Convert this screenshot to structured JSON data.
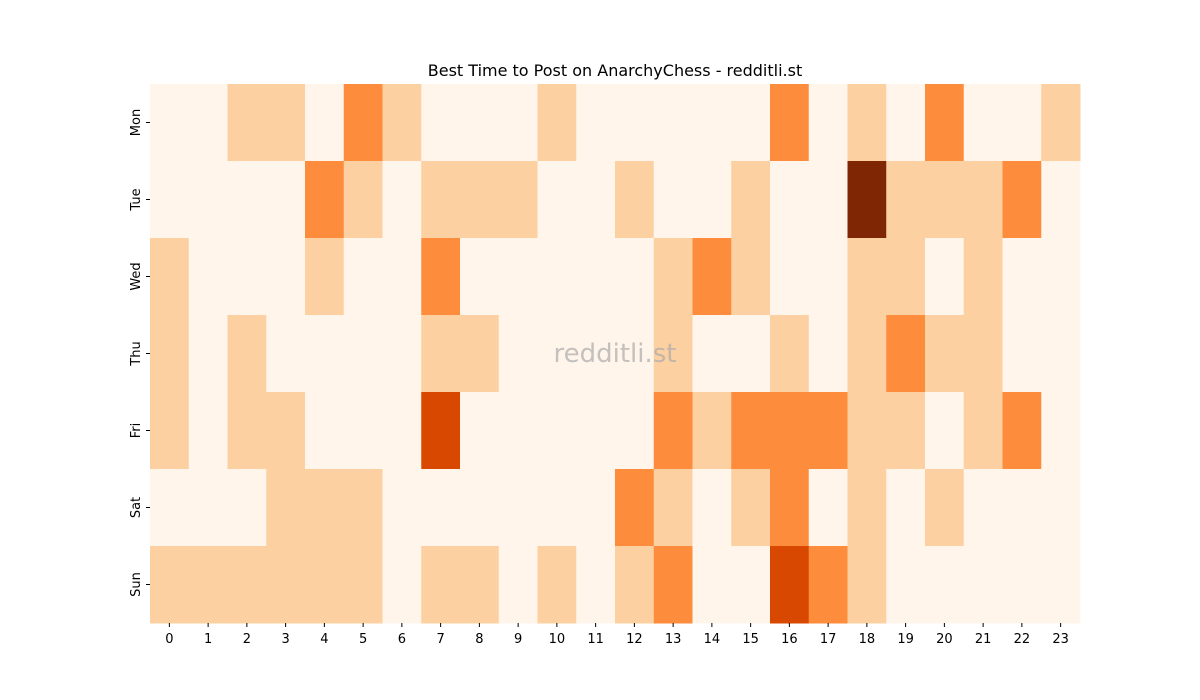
{
  "chart_data": {
    "type": "heatmap",
    "title": "Best Time to Post on AnarchyChess - redditli.st",
    "watermark": "redditli.st",
    "xlabel": "",
    "ylabel": "",
    "x_categories": [
      "0",
      "1",
      "2",
      "3",
      "4",
      "5",
      "6",
      "7",
      "8",
      "9",
      "10",
      "11",
      "12",
      "13",
      "14",
      "15",
      "16",
      "17",
      "18",
      "19",
      "20",
      "21",
      "22",
      "23"
    ],
    "y_categories": [
      "Mon",
      "Tue",
      "Wed",
      "Thu",
      "Fri",
      "Sat",
      "Sun"
    ],
    "colormap": "Oranges",
    "colorbar": false,
    "level_colors": [
      "#fff5eb",
      "#fdd0a2",
      "#fd8d3c",
      "#d94801",
      "#7f2704"
    ],
    "values": [
      [
        0,
        0,
        1,
        1,
        0,
        2,
        1,
        0,
        0,
        0,
        1,
        0,
        0,
        0,
        0,
        0,
        2,
        0,
        1,
        0,
        2,
        0,
        0,
        1
      ],
      [
        0,
        0,
        0,
        0,
        2,
        1,
        0,
        1,
        1,
        1,
        0,
        0,
        1,
        0,
        0,
        1,
        0,
        0,
        4,
        1,
        1,
        1,
        2,
        0
      ],
      [
        1,
        0,
        0,
        0,
        1,
        0,
        0,
        2,
        0,
        0,
        0,
        0,
        0,
        1,
        2,
        1,
        0,
        0,
        1,
        1,
        0,
        1,
        0,
        0
      ],
      [
        1,
        0,
        1,
        0,
        0,
        0,
        0,
        1,
        1,
        0,
        0,
        0,
        0,
        1,
        0,
        0,
        1,
        0,
        1,
        2,
        1,
        1,
        0,
        0
      ],
      [
        1,
        0,
        1,
        1,
        0,
        0,
        0,
        3,
        0,
        0,
        0,
        0,
        0,
        2,
        1,
        2,
        2,
        2,
        1,
        1,
        0,
        1,
        2,
        0
      ],
      [
        0,
        0,
        0,
        1,
        1,
        1,
        0,
        0,
        0,
        0,
        0,
        0,
        2,
        1,
        0,
        1,
        2,
        0,
        1,
        0,
        1,
        0,
        0,
        0
      ],
      [
        1,
        1,
        1,
        1,
        1,
        1,
        0,
        1,
        1,
        0,
        1,
        0,
        1,
        2,
        0,
        0,
        3,
        2,
        1,
        0,
        0,
        0,
        0,
        0
      ]
    ]
  }
}
